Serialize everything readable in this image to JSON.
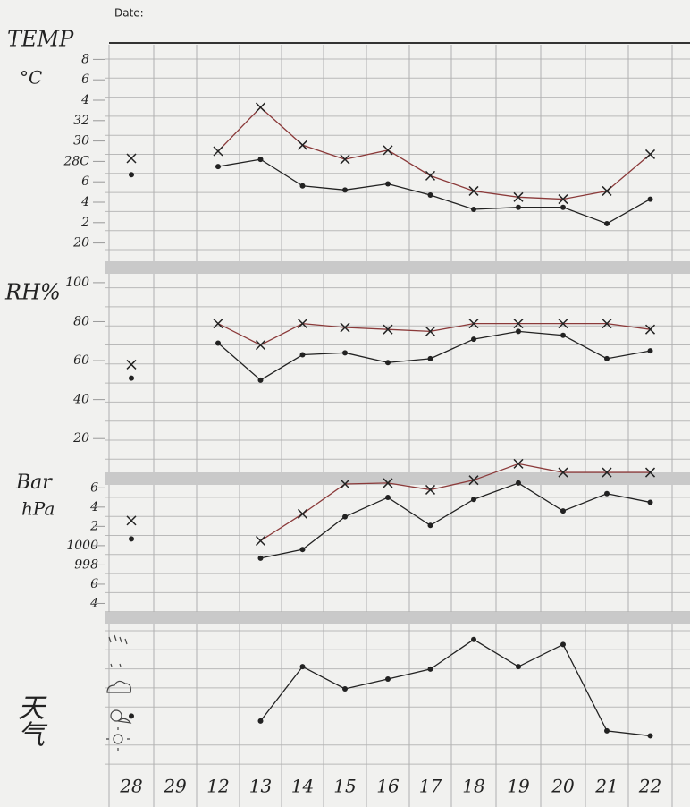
{
  "header": {
    "date_label": "Date:"
  },
  "chart_data": [
    {
      "type": "line",
      "title": "TEMP",
      "subtitle": "°C",
      "ylim": [
        19,
        39
      ],
      "yticks": [
        {
          "value": 38,
          "label": "8"
        },
        {
          "value": 36,
          "label": "6"
        },
        {
          "value": 34,
          "label": "4"
        },
        32,
        30,
        {
          "value": 28,
          "label": "28C"
        },
        {
          "value": 26,
          "label": "6"
        },
        {
          "value": 24,
          "label": "4"
        },
        {
          "value": 22,
          "label": "2"
        },
        20
      ],
      "series": [
        {
          "marker": "x",
          "color": "#8b3a3a",
          "values": [
            28.3,
            null,
            29.0,
            33.3,
            29.6,
            28.2,
            29.1,
            26.6,
            25.1,
            24.5,
            24.3,
            25.1,
            28.7
          ]
        },
        {
          "marker": "o",
          "color": "#222222",
          "values": [
            26.7,
            null,
            27.5,
            28.2,
            25.6,
            25.2,
            25.8,
            24.7,
            23.3,
            23.5,
            23.5,
            21.9,
            24.3
          ]
        }
      ]
    },
    {
      "type": "line",
      "title": "RH%",
      "ylim": [
        10,
        105
      ],
      "yticks": [
        100,
        80,
        60,
        40,
        20
      ],
      "series": [
        {
          "marker": "x",
          "color": "#8b3a3a",
          "values": [
            58,
            null,
            79,
            68,
            79,
            77,
            76,
            75,
            79,
            79,
            79,
            79,
            76
          ]
        },
        {
          "marker": "o",
          "color": "#222222",
          "values": [
            51,
            null,
            69,
            50,
            63,
            64,
            59,
            61,
            71,
            75,
            73,
            61,
            65
          ]
        }
      ]
    },
    {
      "type": "line",
      "title": "Bar",
      "subtitle": "hPa",
      "ylim": [
        992,
        1009
      ],
      "yticks": [
        {
          "value": 1006,
          "label": "6"
        },
        {
          "value": 1004,
          "label": "4"
        },
        {
          "value": 1002,
          "label": "2"
        },
        1000,
        998,
        {
          "value": 996,
          "label": "6"
        },
        {
          "value": 994,
          "label": "4"
        }
      ],
      "series": [
        {
          "marker": "x",
          "color": "#8b3a3a",
          "values": [
            1002.6,
            null,
            null,
            1000.5,
            1003.3,
            1006.4,
            1006.5,
            1005.8,
            1006.8,
            1008.5,
            1007.6,
            1007.6,
            1007.6
          ]
        },
        {
          "marker": "o",
          "color": "#222222",
          "values": [
            1000.7,
            null,
            null,
            998.7,
            999.6,
            1003.0,
            1005.0,
            1002.1,
            1004.8,
            1006.5,
            1003.6,
            1005.4,
            1004.5
          ]
        }
      ]
    },
    {
      "type": "line",
      "title": "天气",
      "ylim": [
        -0.5,
        4.5
      ],
      "categories": [
        "28",
        "29",
        "12",
        "13",
        "14",
        "15",
        "16",
        "17",
        "18",
        "19",
        "20",
        "21",
        "22"
      ],
      "series": [
        {
          "marker": "o",
          "color": "#222222",
          "values": [
            0.9,
            null,
            null,
            0.7,
            2.9,
            2.0,
            2.4,
            2.8,
            4.0,
            2.9,
            3.8,
            0.3,
            0.1
          ]
        }
      ]
    }
  ]
}
